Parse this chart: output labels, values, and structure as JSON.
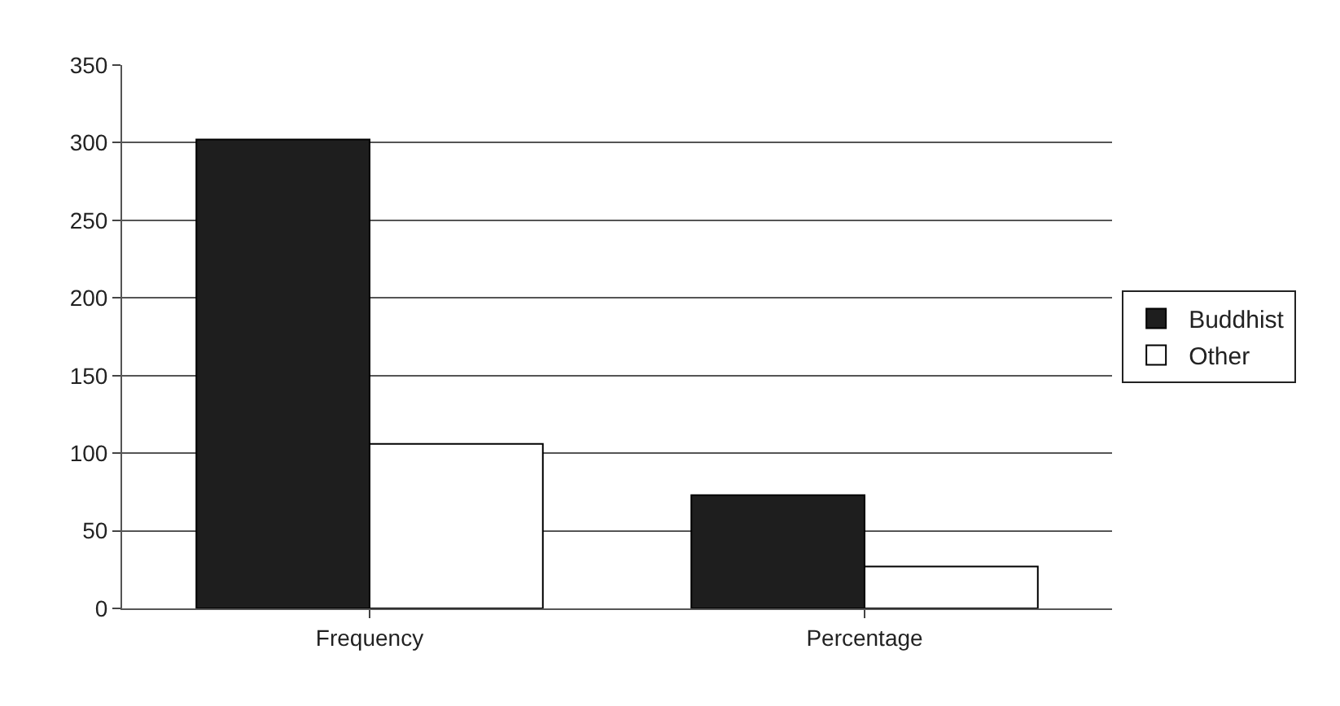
{
  "chart_data": {
    "type": "bar",
    "categories": [
      "Frequency",
      "Percentage"
    ],
    "series": [
      {
        "name": "Buddhist",
        "color": "#1e1e1e",
        "values": [
          302,
          73
        ]
      },
      {
        "name": "Other",
        "color": "#ffffff",
        "values": [
          106,
          27
        ]
      }
    ],
    "ylim": [
      0,
      350
    ],
    "yticks": [
      0,
      50,
      100,
      150,
      200,
      250,
      300,
      350
    ],
    "grid": "y",
    "legend": "right"
  }
}
